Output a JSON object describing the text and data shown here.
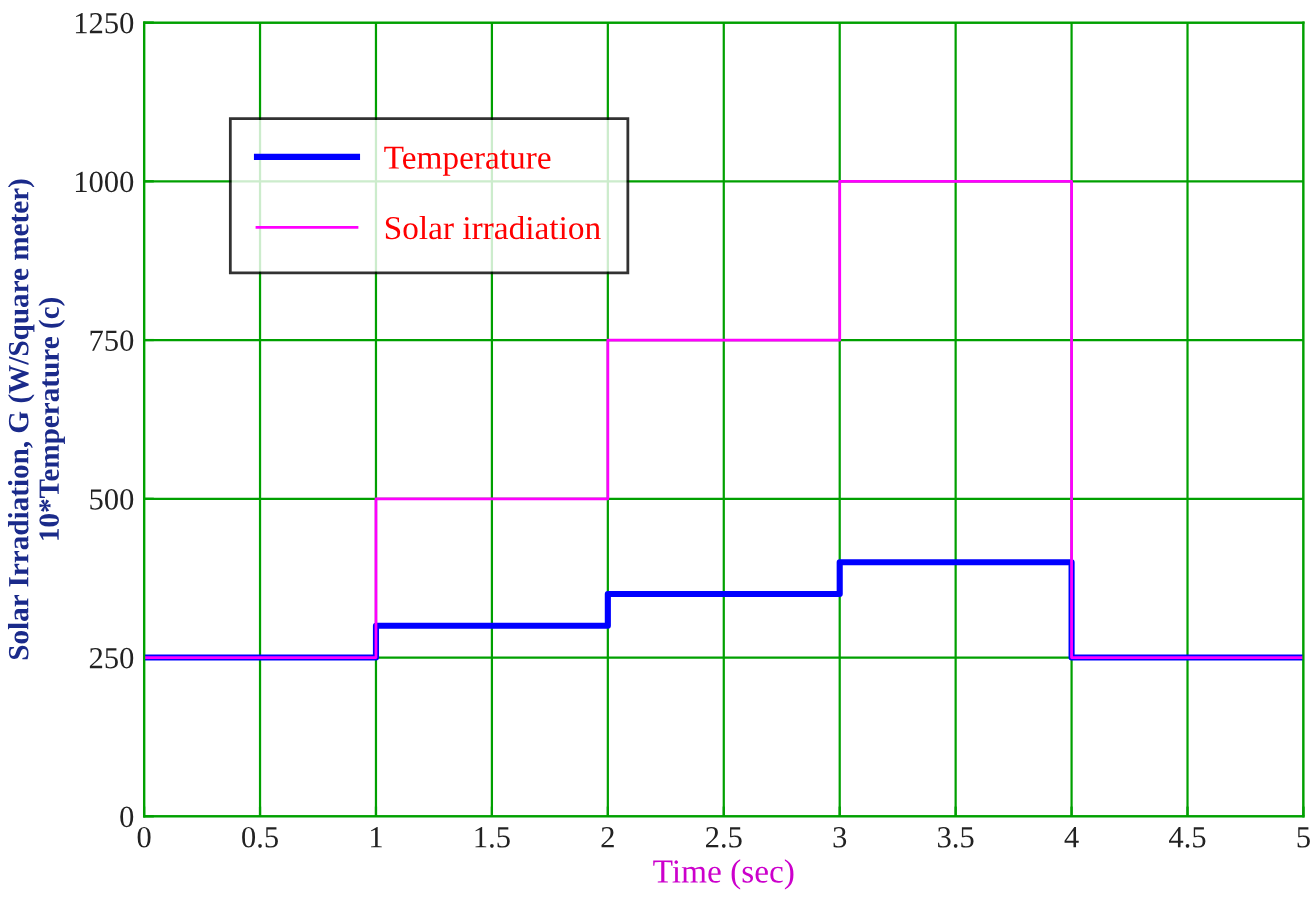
{
  "chart_data": {
    "type": "step",
    "xlabel": "Time (sec)",
    "ylabel": "Solar Irradiation, G (W/Square meter)\n10*Temperature (c)",
    "x": [
      0,
      1,
      2,
      3,
      4,
      5
    ],
    "series": [
      {
        "name": "Temperature",
        "color": "#0000ff",
        "values": [
          250,
          300,
          350,
          400,
          250,
          250
        ]
      },
      {
        "name": "Solar irradiation",
        "color": "#ff00ff",
        "values": [
          250,
          500,
          750,
          1000,
          250,
          250
        ]
      }
    ],
    "xlim": [
      0,
      5
    ],
    "ylim": [
      0,
      1250
    ],
    "xticks": [
      0,
      0.5,
      1,
      1.5,
      2,
      2.5,
      3,
      3.5,
      4,
      4.5,
      5
    ],
    "yticks": [
      0,
      250,
      500,
      750,
      1000,
      1250
    ],
    "grid": true,
    "legend": "top left"
  }
}
